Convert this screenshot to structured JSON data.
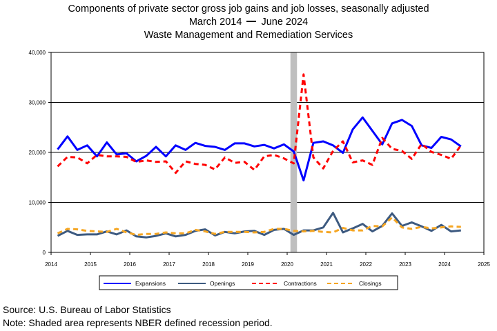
{
  "header": {
    "title": "Components of private sector gross job gains and job losses, seasonally adjusted",
    "date_start": "March 2014",
    "date_end": "June 2024",
    "subtitle": "Waste Management and Remediation Services"
  },
  "footer": {
    "source": "Source: U.S. Bureau of Labor Statistics",
    "note": "Note: Shaded area represents NBER defined recession period."
  },
  "colors": {
    "expansions": "#0000ff",
    "openings": "#3d5a80",
    "contractions": "#ff0000",
    "closings": "#f5a623",
    "recession": "#bfbfbf"
  },
  "chart_data": {
    "type": "line",
    "xlim": [
      2014,
      2025
    ],
    "ylim": [
      0,
      40000
    ],
    "x_ticks": [
      2014,
      2015,
      2016,
      2017,
      2018,
      2019,
      2020,
      2021,
      2022,
      2023,
      2024,
      2025
    ],
    "x_tick_labels": [
      "2014",
      "2015",
      "2016",
      "2017",
      "2018",
      "2019",
      "2020",
      "2021",
      "2022",
      "2023",
      "2024",
      "2025"
    ],
    "y_ticks": [
      0,
      10000,
      20000,
      30000,
      40000
    ],
    "y_tick_labels": [
      "0",
      "10,000",
      "20,000",
      "30,000",
      "40,000"
    ],
    "grid": "horizontal",
    "recession_band": [
      "2020-02",
      "2020-04"
    ],
    "legend_position": "bottom",
    "x": [
      "2014-03",
      "2014-06",
      "2014-09",
      "2014-12",
      "2015-03",
      "2015-06",
      "2015-09",
      "2015-12",
      "2016-03",
      "2016-06",
      "2016-09",
      "2016-12",
      "2017-03",
      "2017-06",
      "2017-09",
      "2017-12",
      "2018-03",
      "2018-06",
      "2018-09",
      "2018-12",
      "2019-03",
      "2019-06",
      "2019-09",
      "2019-12",
      "2020-03",
      "2020-06",
      "2020-09",
      "2020-12",
      "2021-03",
      "2021-06",
      "2021-09",
      "2021-12",
      "2022-03",
      "2022-06",
      "2022-09",
      "2022-12",
      "2023-03",
      "2023-06",
      "2023-09",
      "2023-12",
      "2024-03",
      "2024-06"
    ],
    "series": [
      {
        "name": "Expansions",
        "color": "#0000ff",
        "dash": "solid",
        "values": [
          20600,
          23200,
          20500,
          21400,
          19200,
          22000,
          19600,
          19800,
          18200,
          19300,
          21100,
          19200,
          21400,
          20500,
          21900,
          21300,
          21100,
          20500,
          21800,
          21800,
          21200,
          21500,
          20800,
          21600,
          20200,
          14400,
          21900,
          22200,
          21400,
          19900,
          24600,
          27000,
          24300,
          21600,
          25800,
          26500,
          25300,
          21400,
          20900,
          23100,
          22600,
          21200
        ]
      },
      {
        "name": "Openings",
        "color": "#3d5a80",
        "dash": "solid",
        "values": [
          3300,
          4300,
          3500,
          3600,
          3600,
          4200,
          3600,
          4400,
          3200,
          3000,
          3300,
          3800,
          3200,
          3500,
          4300,
          4600,
          3400,
          4100,
          3800,
          4200,
          4300,
          3500,
          4500,
          4700,
          3500,
          4400,
          4400,
          5000,
          7900,
          4000,
          4800,
          5700,
          4200,
          5300,
          7800,
          5300,
          6000,
          5200,
          4300,
          5500,
          4200,
          4400
        ]
      },
      {
        "name": "Contractions",
        "color": "#ff0000",
        "dash": "dashed",
        "values": [
          17200,
          19100,
          19000,
          17800,
          19500,
          19200,
          19200,
          19100,
          18100,
          18400,
          18100,
          18200,
          15900,
          18200,
          17700,
          17500,
          16600,
          19000,
          17900,
          18100,
          16500,
          19200,
          19500,
          18800,
          17800,
          35600,
          19000,
          16800,
          20300,
          22200,
          18000,
          18400,
          17500,
          22900,
          20700,
          20300,
          18700,
          21700,
          20100,
          19500,
          18700,
          21400
        ]
      },
      {
        "name": "Closings",
        "color": "#f5a623",
        "dash": "dashed",
        "values": [
          3800,
          4700,
          4600,
          4300,
          4200,
          4100,
          4700,
          4000,
          3500,
          3700,
          3700,
          4000,
          3800,
          3800,
          4500,
          4200,
          3700,
          4100,
          4100,
          4100,
          4000,
          4100,
          4700,
          4700,
          4300,
          4200,
          4300,
          4100,
          4000,
          4900,
          4400,
          4400,
          5300,
          5200,
          7000,
          5000,
          4700,
          5100,
          4800,
          5000,
          5200,
          5100
        ]
      }
    ]
  }
}
